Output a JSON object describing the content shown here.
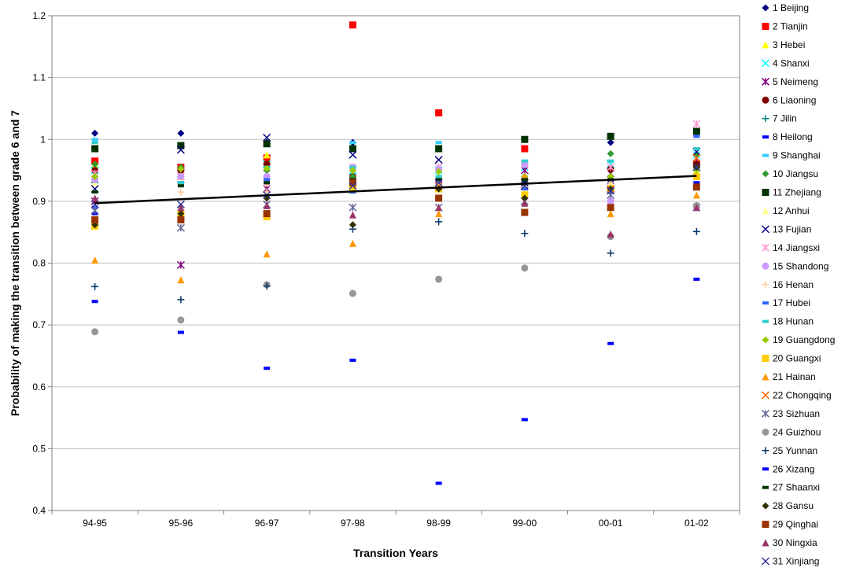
{
  "chart_data": {
    "type": "scatter",
    "title": "",
    "xlabel": "Transition Years",
    "ylabel": "Probability of making the transition between grade 6 and 7",
    "categories": [
      "94-95",
      "95-96",
      "96-97",
      "97-98",
      "98-99",
      "99-00",
      "00-01",
      "01-02"
    ],
    "ylim": [
      0.4,
      1.2
    ],
    "yticks": [
      "0.4",
      "0.5",
      "0.6",
      "0.7",
      "0.8",
      "0.9",
      "1",
      "1.1",
      "1.2"
    ],
    "grid": "horizontal",
    "legend_position": "right",
    "trendline": {
      "type": "linear",
      "start": 0.897,
      "end": 0.941,
      "color": "#000000"
    },
    "series": [
      {
        "name": "1 Beijing",
        "marker": "diamond",
        "color": "#000080",
        "values": [
          1.01,
          1.01,
          0.995,
          0.995,
          null,
          null,
          0.995,
          null
        ]
      },
      {
        "name": "2 Tianjin",
        "marker": "square",
        "color": "#ff0000",
        "values": [
          0.965,
          0.955,
          0.97,
          1.185,
          1.043,
          0.985,
          0.92,
          0.96
        ]
      },
      {
        "name": "3 Hebei",
        "marker": "triangle",
        "color": "#ffff00",
        "values": [
          0.96,
          0.94,
          0.975,
          0.94,
          0.94,
          0.93,
          0.93,
          0.96
        ]
      },
      {
        "name": "4 Shanxi",
        "marker": "x",
        "color": "#00ffff",
        "values": [
          0.95,
          0.945,
          0.96,
          0.95,
          0.95,
          0.955,
          0.96,
          0.975
        ]
      },
      {
        "name": "5 Neimeng",
        "marker": "asterisk",
        "color": "#800080",
        "values": [
          0.9,
          0.797,
          0.92,
          0.93,
          0.93,
          0.95,
          0.945,
          0.97
        ]
      },
      {
        "name": "6 Liaoning",
        "marker": "circle",
        "color": "#800000",
        "values": [
          0.95,
          0.95,
          0.96,
          0.94,
          0.935,
          0.935,
          0.952,
          0.96
        ]
      },
      {
        "name": "7 Jilin",
        "marker": "plus",
        "color": "#008080",
        "values": [
          0.93,
          0.93,
          0.95,
          0.95,
          0.935,
          0.93,
          0.94,
          0.95
        ]
      },
      {
        "name": "8 Heilong",
        "marker": "dash",
        "color": "#0000ff",
        "values": [
          0.88,
          0.93,
          0.94,
          0.915,
          0.93,
          0.92,
          0.93,
          0.93
        ]
      },
      {
        "name": "9 Shanghai",
        "marker": "dash",
        "color": "#33ccff",
        "values": [
          1.0,
          0.99,
          0.99,
          0.995,
          0.995,
          0.965,
          0.965,
          0.985
        ]
      },
      {
        "name": "10 Jiangsu",
        "marker": "diamond",
        "color": "#339933",
        "values": [
          0.96,
          0.955,
          0.95,
          0.94,
          0.935,
          0.94,
          0.977,
          0.975
        ]
      },
      {
        "name": "11 Zhejiang",
        "marker": "square",
        "color": "#003300",
        "values": [
          0.985,
          0.99,
          0.993,
          0.985,
          0.985,
          1.0,
          1.005,
          1.013
        ]
      },
      {
        "name": "12 Anhui",
        "marker": "triangle",
        "color": "#ffff99",
        "values": [
          0.93,
          0.93,
          0.93,
          0.93,
          0.93,
          0.92,
          0.93,
          0.95
        ]
      },
      {
        "name": "13 Fujian",
        "marker": "x",
        "color": "#000080",
        "values": [
          0.92,
          0.983,
          1.003,
          0.975,
          0.967,
          0.93,
          0.92,
          0.98
        ]
      },
      {
        "name": "14 Jiangsxi",
        "marker": "asterisk",
        "color": "#ff99cc",
        "values": [
          0.945,
          0.94,
          0.93,
          0.955,
          0.955,
          0.96,
          0.955,
          1.025
        ]
      },
      {
        "name": "15 Shandong",
        "marker": "circle",
        "color": "#cc99ff",
        "values": [
          0.935,
          0.94,
          0.94,
          0.955,
          0.952,
          0.96,
          0.9,
          0.89
        ]
      },
      {
        "name": "16 Henan",
        "marker": "plus",
        "color": "#ffcc99",
        "values": [
          0.89,
          0.915,
          0.915,
          0.92,
          0.92,
          0.92,
          0.93,
          0.94
        ]
      },
      {
        "name": "17 Hubei",
        "marker": "dash",
        "color": "#3366ff",
        "values": [
          0.89,
          0.93,
          0.935,
          0.915,
          0.92,
          0.92,
          0.915,
          1.005
        ]
      },
      {
        "name": "18 Hunan",
        "marker": "dash",
        "color": "#33cccc",
        "values": [
          0.995,
          0.93,
          0.955,
          0.955,
          0.94,
          0.965,
          0.965,
          0.985
        ]
      },
      {
        "name": "19 Guangdong",
        "marker": "diamond",
        "color": "#99cc00",
        "values": [
          0.94,
          0.952,
          0.953,
          0.95,
          0.948,
          0.94,
          0.94,
          0.95
        ]
      },
      {
        "name": "20 Guangxi",
        "marker": "square",
        "color": "#ffcc00",
        "values": [
          0.86,
          0.88,
          0.875,
          0.92,
          0.92,
          0.91,
          0.92,
          0.94
        ]
      },
      {
        "name": "21 Hainan",
        "marker": "triangle",
        "color": "#ff9900",
        "values": [
          0.805,
          0.773,
          0.815,
          0.832,
          0.88,
          0.94,
          0.88,
          0.91
        ]
      },
      {
        "name": "22 Chongqing",
        "marker": "x",
        "color": "#ff6600",
        "values": [
          null,
          null,
          null,
          null,
          0.925,
          0.925,
          0.92,
          0.97
        ]
      },
      {
        "name": "23 Sizhuan",
        "marker": "asterisk",
        "color": "#666699",
        "values": [
          0.885,
          0.857,
          0.895,
          0.89,
          0.89,
          0.9,
          0.91,
          0.89
        ]
      },
      {
        "name": "24 Guizhou",
        "marker": "circle",
        "color": "#969696",
        "values": [
          0.689,
          0.708,
          0.765,
          0.751,
          0.774,
          0.792,
          0.843,
          0.893
        ]
      },
      {
        "name": "25 Yunnan",
        "marker": "plus",
        "color": "#003366",
        "values": [
          0.762,
          0.741,
          0.763,
          0.855,
          0.867,
          0.848,
          0.816,
          0.851
        ]
      },
      {
        "name": "26 Xizang",
        "marker": "dash",
        "color": "#0000ff",
        "values": [
          0.738,
          0.688,
          0.63,
          0.643,
          0.444,
          0.547,
          0.67,
          0.774
        ]
      },
      {
        "name": "27 Shaanxi",
        "marker": "dash",
        "color": "#003300",
        "values": [
          0.915,
          0.925,
          0.93,
          0.935,
          0.935,
          0.935,
          0.935,
          0.955
        ]
      },
      {
        "name": "28 Gansu",
        "marker": "diamond",
        "color": "#333300",
        "values": [
          0.862,
          0.88,
          0.905,
          0.862,
          0.92,
          0.905,
          0.92,
          0.955
        ]
      },
      {
        "name": "29 Qinghai",
        "marker": "square",
        "color": "#993300",
        "values": [
          0.87,
          0.87,
          0.88,
          0.93,
          0.905,
          0.882,
          0.89,
          0.923
        ]
      },
      {
        "name": "30 Ningxia",
        "marker": "triangle",
        "color": "#993366",
        "values": [
          0.905,
          0.89,
          0.893,
          0.878,
          0.89,
          0.897,
          0.847,
          0.89
        ]
      },
      {
        "name": "31 Xinjiang",
        "marker": "x",
        "color": "#333399",
        "values": [
          0.895,
          0.895,
          0.91,
          0.925,
          0.93,
          0.925,
          0.917,
          0.955
        ]
      }
    ]
  }
}
